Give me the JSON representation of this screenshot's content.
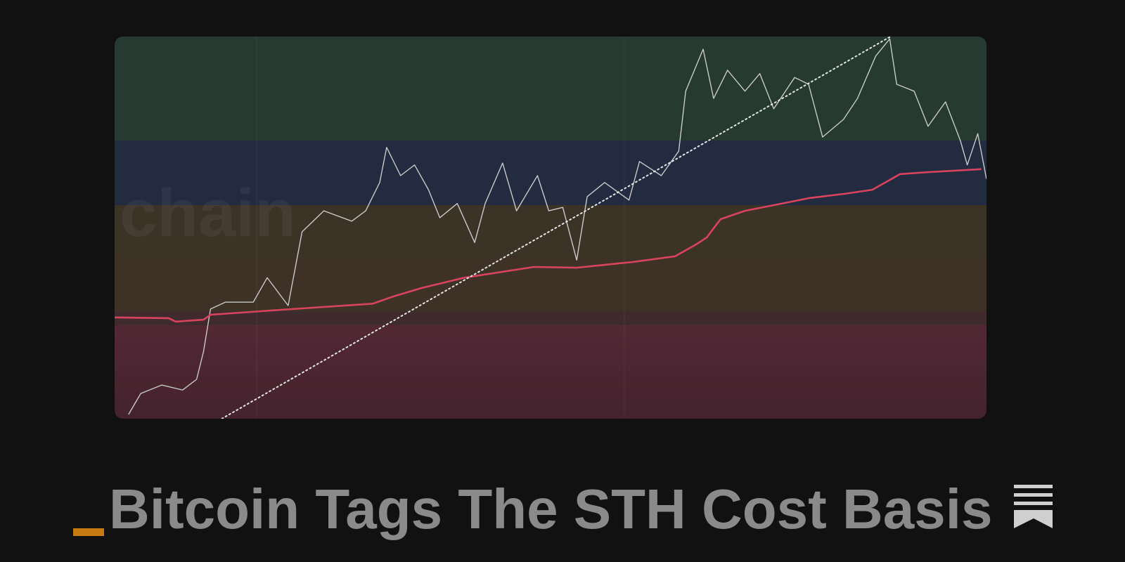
{
  "chart_data": {
    "type": "line",
    "title": "Bitcoin Tags The STH Cost Basis",
    "watermark": "chain",
    "xlim": [
      0,
      100
    ],
    "ylim": [
      0,
      100
    ],
    "series": [
      {
        "color": "#c9c9c9",
        "width": 1.4,
        "dashed": false,
        "x": [
          1.6,
          3.0,
          5.4,
          7.8,
          9.4,
          10.2,
          11.0,
          12.7,
          15.9,
          17.5,
          19.9,
          21.5,
          24.0,
          27.2,
          28.8,
          30.4,
          31.2,
          32.8,
          34.4,
          36.0,
          37.3,
          39.3,
          41.3,
          42.5,
          44.5,
          46.1,
          48.5,
          49.8,
          51.4,
          53.0,
          54.2,
          56.2,
          59.0,
          60.2,
          62.7,
          64.7,
          65.5,
          67.5,
          68.7,
          70.3,
          72.3,
          74.0,
          75.6,
          78.0,
          79.6,
          81.2,
          83.6,
          85.2,
          87.3,
          88.9,
          89.7,
          91.7,
          93.3,
          95.3,
          97.0,
          97.8,
          99.0,
          100
        ],
        "values": [
          1.1,
          6.6,
          8.8,
          7.5,
          10.3,
          17.6,
          28.7,
          30.5,
          30.5,
          36.9,
          29.6,
          48.9,
          54.4,
          51.7,
          54.4,
          61.8,
          71.0,
          63.6,
          66.4,
          59.9,
          52.6,
          56.3,
          46.1,
          56.3,
          66.9,
          54.4,
          63.6,
          54.4,
          55.3,
          41.5,
          58.1,
          61.8,
          57.2,
          67.3,
          63.6,
          70.0,
          85.7,
          96.7,
          83.8,
          91.2,
          85.7,
          90.3,
          81.1,
          89.3,
          87.5,
          73.7,
          78.3,
          83.8,
          94.9,
          99.4,
          87.5,
          85.7,
          76.5,
          82.9,
          72.8,
          66.4,
          74.6,
          62.7
        ]
      },
      {
        "color": "#d9435e",
        "width": 2.6,
        "dashed": false,
        "x": [
          0,
          6.2,
          7.0,
          10.2,
          11.0,
          19.1,
          29.6,
          32.0,
          35.2,
          40.1,
          48.1,
          53.0,
          59.4,
          64.3,
          66.7,
          67.9,
          69.5,
          72.3,
          77.2,
          79.6,
          83.6,
          86.9,
          90.1,
          93.3,
          99.4
        ],
        "values": [
          26.5,
          26.3,
          25.4,
          25.9,
          27.2,
          28.5,
          30.1,
          32.0,
          34.2,
          36.9,
          39.7,
          39.5,
          41.0,
          42.5,
          45.6,
          47.4,
          52.2,
          54.4,
          56.6,
          57.7,
          58.8,
          59.9,
          64.0,
          64.5,
          65.3
        ]
      },
      {
        "color": "#e6e6e6",
        "width": 2,
        "dashed": true,
        "x": [
          12.3,
          89.0
        ],
        "values": [
          0,
          100
        ]
      }
    ]
  }
}
